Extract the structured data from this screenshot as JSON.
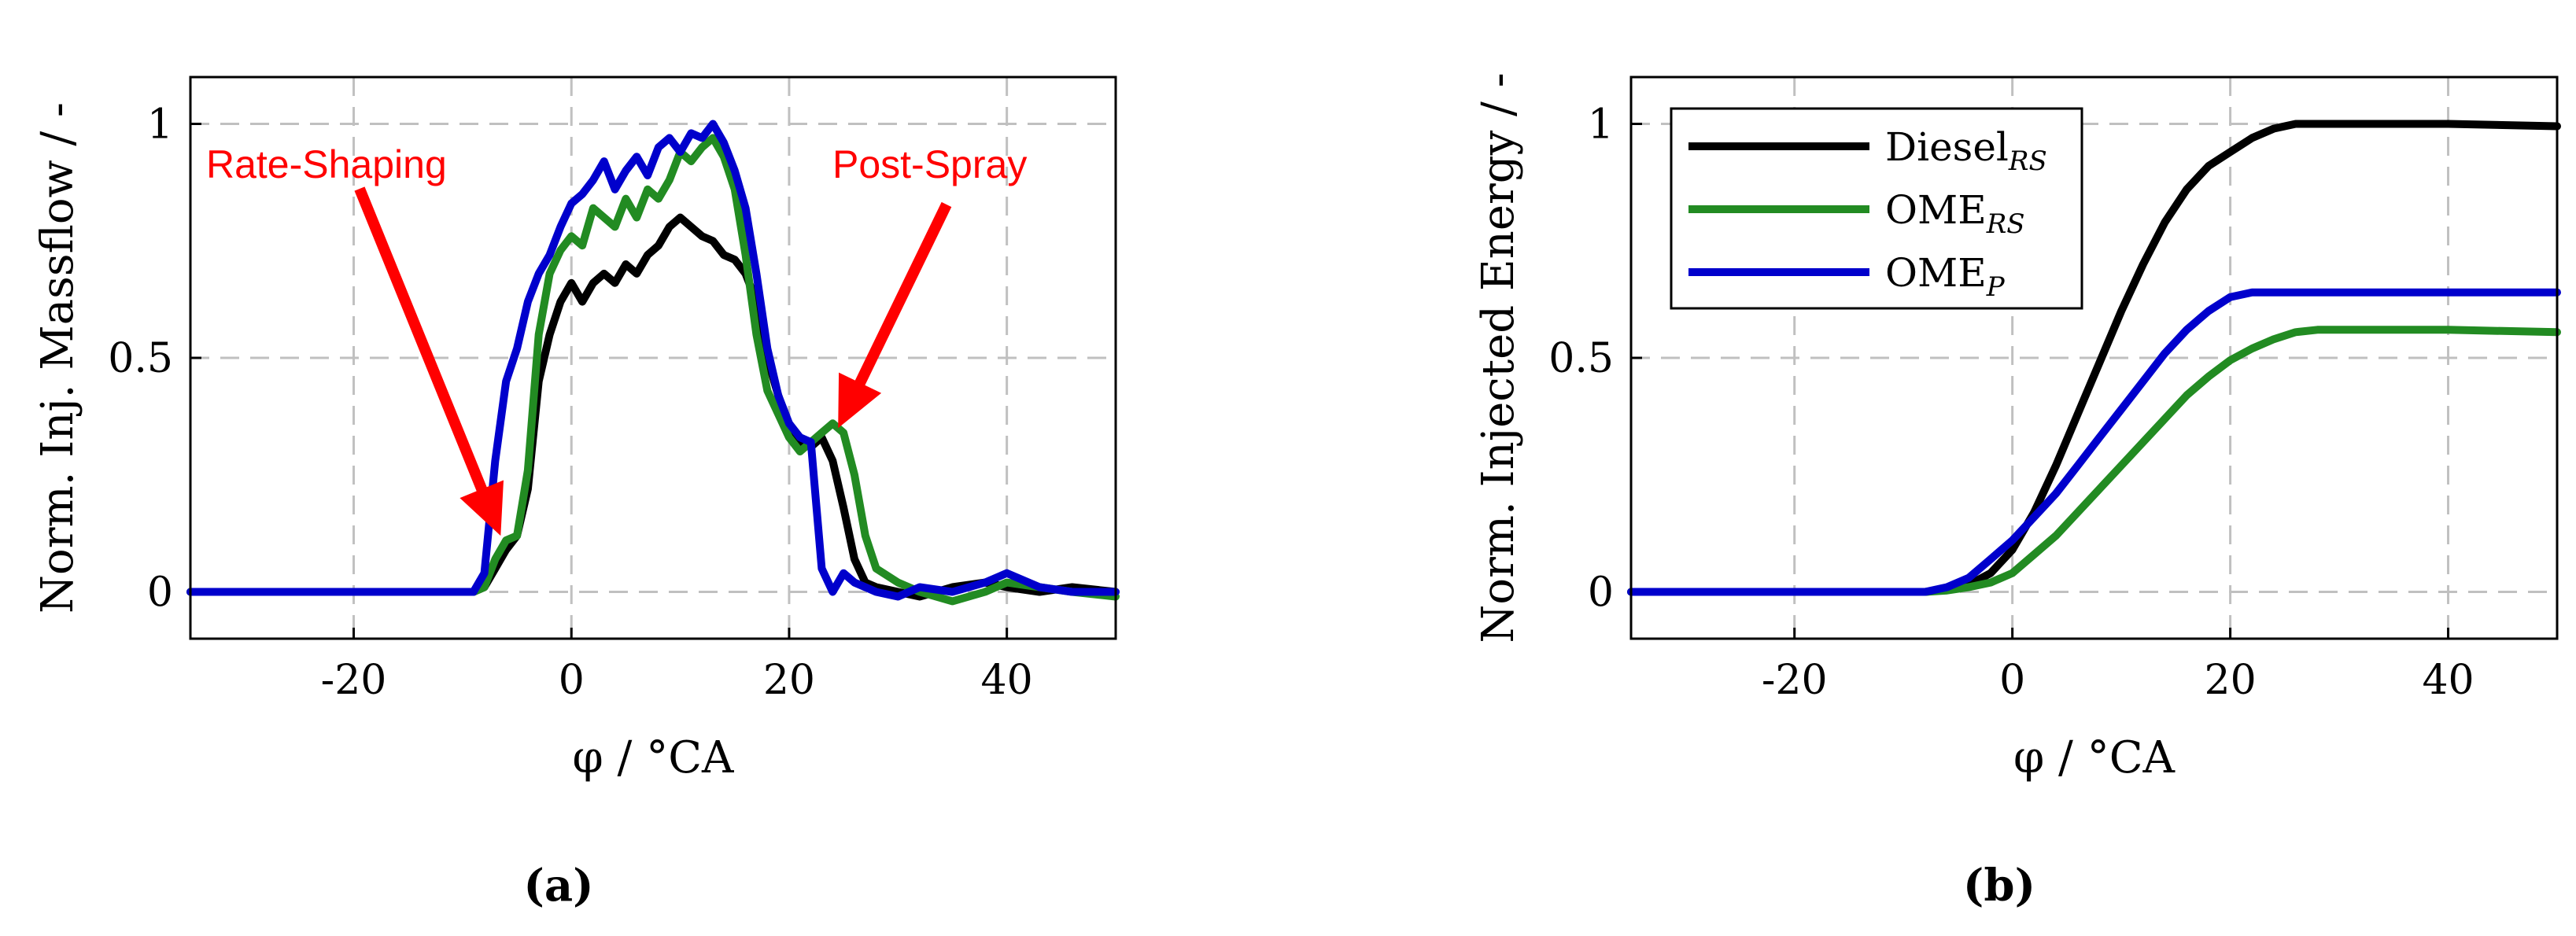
{
  "chart_data": [
    {
      "panel": "(a)",
      "type": "line",
      "xlabel": "φ / °CA",
      "ylabel": "Norm. Inj. Massflow / -",
      "xlim": [
        -35,
        50
      ],
      "ylim": [
        -0.1,
        1.1
      ],
      "xticks": [
        -20,
        0,
        20,
        40
      ],
      "yticks": [
        0,
        0.5,
        1
      ],
      "xtick_labels": [
        "-20",
        "0",
        "20",
        "40"
      ],
      "ytick_labels": [
        "0",
        "0.5",
        "1"
      ],
      "grid": true,
      "annotations": [
        {
          "text": "Rate-Shaping",
          "color": "#ff0000",
          "points_to": {
            "x": -6.5,
            "y": 0.12
          }
        },
        {
          "text": "Post-Spray",
          "color": "#ff0000",
          "points_to": {
            "x": 24.5,
            "y": 0.35
          }
        }
      ],
      "series": [
        {
          "color": "#000000",
          "x": [
            -35,
            -20,
            -10,
            -9,
            -8,
            -7,
            -6,
            -5,
            -4,
            -3,
            -2,
            -1,
            0,
            1,
            2,
            3,
            4,
            5,
            6,
            7,
            8,
            9,
            10,
            11,
            12,
            13,
            14,
            15,
            16,
            17,
            18,
            19,
            20,
            21,
            22,
            23,
            24,
            25,
            26,
            27,
            28,
            30,
            32,
            35,
            38,
            40,
            43,
            46,
            50
          ],
          "y": [
            0,
            0,
            0,
            0,
            0.01,
            0.05,
            0.09,
            0.12,
            0.22,
            0.45,
            0.55,
            0.62,
            0.66,
            0.62,
            0.66,
            0.68,
            0.66,
            0.7,
            0.68,
            0.72,
            0.74,
            0.78,
            0.8,
            0.78,
            0.76,
            0.75,
            0.72,
            0.71,
            0.68,
            0.62,
            0.5,
            0.42,
            0.35,
            0.32,
            0.31,
            0.33,
            0.28,
            0.18,
            0.07,
            0.02,
            0.01,
            0.0,
            -0.01,
            0.01,
            0.02,
            0.01,
            0.0,
            0.01,
            0.0
          ]
        },
        {
          "color": "#228b22",
          "x": [
            -35,
            -20,
            -10,
            -9,
            -8,
            -7,
            -6,
            -5,
            -4,
            -3,
            -2,
            -1,
            0,
            1,
            2,
            3,
            4,
            5,
            6,
            7,
            8,
            9,
            10,
            11,
            12,
            13,
            14,
            15,
            16,
            17,
            18,
            19,
            20,
            21,
            22,
            23,
            24,
            25,
            26,
            27,
            28,
            30,
            32,
            35,
            38,
            40,
            43,
            46,
            50
          ],
          "y": [
            0,
            0,
            0,
            0,
            0.01,
            0.07,
            0.11,
            0.12,
            0.26,
            0.55,
            0.68,
            0.73,
            0.76,
            0.74,
            0.82,
            0.8,
            0.78,
            0.84,
            0.8,
            0.86,
            0.84,
            0.88,
            0.94,
            0.92,
            0.95,
            0.97,
            0.93,
            0.86,
            0.72,
            0.55,
            0.43,
            0.38,
            0.33,
            0.3,
            0.32,
            0.34,
            0.36,
            0.34,
            0.25,
            0.12,
            0.05,
            0.02,
            0.0,
            -0.02,
            0.0,
            0.02,
            0.01,
            0.0,
            -0.01
          ]
        },
        {
          "color": "#0000cc",
          "x": [
            -35,
            -20,
            -10,
            -9,
            -8,
            -7,
            -6,
            -5,
            -4,
            -3,
            -2,
            -1,
            0,
            1,
            2,
            3,
            4,
            5,
            6,
            7,
            8,
            9,
            10,
            11,
            12,
            13,
            14,
            15,
            16,
            17,
            18,
            19,
            20,
            21,
            22,
            23,
            24,
            25,
            26,
            27,
            28,
            30,
            32,
            35,
            38,
            40,
            43,
            46,
            50
          ],
          "y": [
            0,
            0,
            0,
            0,
            0.04,
            0.28,
            0.45,
            0.52,
            0.62,
            0.68,
            0.72,
            0.78,
            0.83,
            0.85,
            0.88,
            0.92,
            0.86,
            0.9,
            0.93,
            0.89,
            0.95,
            0.97,
            0.94,
            0.98,
            0.97,
            1.0,
            0.96,
            0.9,
            0.82,
            0.68,
            0.52,
            0.42,
            0.36,
            0.33,
            0.32,
            0.05,
            0.0,
            0.04,
            0.02,
            0.01,
            0.0,
            -0.01,
            0.01,
            0.0,
            0.02,
            0.04,
            0.01,
            0.0,
            0.0
          ]
        }
      ]
    },
    {
      "panel": "(b)",
      "type": "line",
      "xlabel": "φ / °CA",
      "ylabel": "Norm. Injected Energy / -",
      "xlim": [
        -35,
        50
      ],
      "ylim": [
        -0.1,
        1.1
      ],
      "xticks": [
        -20,
        0,
        20,
        40
      ],
      "yticks": [
        0,
        0.5,
        1
      ],
      "xtick_labels": [
        "-20",
        "0",
        "20",
        "40"
      ],
      "ytick_labels": [
        "0",
        "0.5",
        "1"
      ],
      "grid": true,
      "legend": {
        "placement": "top-left",
        "entries": [
          {
            "base": "Diesel",
            "sub": "RS",
            "color": "#000000"
          },
          {
            "base": "OME",
            "sub": "RS",
            "color": "#228b22"
          },
          {
            "base": "OME",
            "sub": "P",
            "color": "#0000cc"
          }
        ]
      },
      "series": [
        {
          "color": "#000000",
          "x": [
            -35,
            -10,
            -8,
            -6,
            -4,
            -2,
            0,
            2,
            4,
            6,
            8,
            10,
            12,
            14,
            16,
            18,
            20,
            22,
            24,
            26,
            28,
            30,
            40,
            50
          ],
          "y": [
            0,
            0,
            0,
            0.005,
            0.015,
            0.04,
            0.09,
            0.17,
            0.27,
            0.38,
            0.49,
            0.6,
            0.7,
            0.79,
            0.86,
            0.91,
            0.94,
            0.97,
            0.99,
            1.0,
            1.0,
            1.0,
            1.0,
            0.995
          ]
        },
        {
          "color": "#228b22",
          "x": [
            -35,
            -10,
            -8,
            -6,
            -4,
            -2,
            0,
            2,
            4,
            6,
            8,
            10,
            12,
            14,
            16,
            18,
            20,
            22,
            24,
            26,
            28,
            30,
            40,
            50
          ],
          "y": [
            0,
            0,
            0,
            0.003,
            0.01,
            0.02,
            0.04,
            0.08,
            0.12,
            0.17,
            0.22,
            0.27,
            0.32,
            0.37,
            0.42,
            0.46,
            0.495,
            0.52,
            0.54,
            0.555,
            0.56,
            0.56,
            0.56,
            0.555
          ]
        },
        {
          "color": "#0000cc",
          "x": [
            -35,
            -10,
            -8,
            -6,
            -4,
            -2,
            0,
            2,
            4,
            6,
            8,
            10,
            12,
            14,
            16,
            18,
            20,
            22,
            24,
            26,
            28,
            30,
            40,
            50
          ],
          "y": [
            0,
            0,
            0,
            0.01,
            0.03,
            0.07,
            0.11,
            0.16,
            0.21,
            0.27,
            0.33,
            0.39,
            0.45,
            0.51,
            0.56,
            0.6,
            0.63,
            0.64,
            0.64,
            0.64,
            0.64,
            0.64,
            0.64,
            0.64
          ]
        }
      ]
    }
  ],
  "captions": [
    "(a)",
    "(b)"
  ]
}
